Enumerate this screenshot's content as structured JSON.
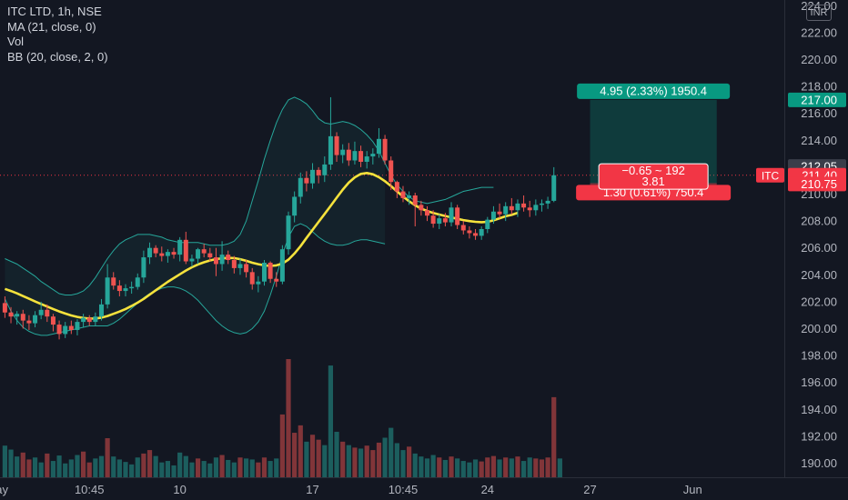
{
  "legend": {
    "symbol": "ITC LTD, 1h, NSE",
    "ma": "MA (21, close, 0)",
    "vol": "Vol",
    "bb": "BB (20, close, 2, 0)"
  },
  "currency": "INR",
  "colors": {
    "background": "#131722",
    "up": "#26a69a",
    "down": "#ef5350",
    "ma": "#f5e23c",
    "bb_band": "#26a69a",
    "axis_text": "#b2b5be"
  },
  "chart_data": {
    "type": "candlestick",
    "title": "ITC LTD, 1h, NSE",
    "ylim": [
      189.2,
      224.0
    ],
    "y_ticks": [
      190,
      192,
      194,
      196,
      198,
      200,
      202,
      204,
      206,
      208,
      210,
      212,
      214,
      216,
      218,
      220,
      222,
      224
    ],
    "y_tick_labels": [
      "190.00",
      "192.00",
      "194.00",
      "196.00",
      "198.00",
      "200.00",
      "202.00",
      "204.00",
      "206.00",
      "208.00",
      "210.00",
      "212.00",
      "214.00",
      "216.00",
      "218.00",
      "220.00",
      "222.00",
      "224.00"
    ],
    "x_tick_labels": [
      {
        "label": "ay",
        "bar": -0.5
      },
      {
        "label": "10:45",
        "bar": 14
      },
      {
        "label": "10",
        "bar": 29
      },
      {
        "label": "17",
        "bar": 51
      },
      {
        "label": "10:45",
        "bar": 66
      },
      {
        "label": "24",
        "bar": 80
      },
      {
        "label": "27",
        "bar": 97
      },
      {
        "label": "Jun",
        "bar": 114
      }
    ],
    "candles": [
      [
        201.9,
        202.4,
        200.8,
        201.2
      ],
      [
        201.2,
        201.6,
        200.4,
        200.9
      ],
      [
        200.9,
        201.3,
        200.3,
        201.1
      ],
      [
        201.1,
        201.4,
        200.0,
        200.6
      ],
      [
        200.6,
        201.0,
        199.9,
        200.4
      ],
      [
        200.4,
        201.3,
        200.1,
        201.0
      ],
      [
        201.0,
        202.0,
        200.7,
        201.4
      ],
      [
        201.4,
        201.8,
        200.5,
        200.9
      ],
      [
        200.9,
        201.1,
        199.8,
        200.3
      ],
      [
        200.3,
        200.6,
        199.2,
        199.6
      ],
      [
        199.6,
        200.5,
        199.3,
        200.2
      ],
      [
        200.2,
        200.6,
        199.6,
        199.9
      ],
      [
        199.9,
        200.7,
        199.5,
        200.5
      ],
      [
        200.5,
        201.1,
        200.1,
        200.8
      ],
      [
        200.8,
        201.0,
        200.2,
        200.5
      ],
      [
        200.5,
        201.2,
        200.2,
        200.9
      ],
      [
        200.9,
        202.2,
        200.6,
        201.8
      ],
      [
        201.8,
        204.8,
        201.5,
        203.8
      ],
      [
        203.8,
        204.2,
        202.9,
        203.2
      ],
      [
        203.2,
        203.6,
        202.4,
        202.8
      ],
      [
        202.8,
        203.3,
        202.4,
        203.0
      ],
      [
        203.0,
        203.5,
        202.6,
        203.1
      ],
      [
        203.1,
        204.1,
        202.9,
        203.8
      ],
      [
        203.8,
        205.8,
        203.4,
        205.3
      ],
      [
        205.3,
        206.4,
        204.8,
        206.0
      ],
      [
        206.0,
        206.2,
        205.3,
        205.6
      ],
      [
        205.6,
        206.1,
        205.0,
        205.4
      ],
      [
        205.4,
        205.9,
        204.9,
        205.7
      ],
      [
        205.7,
        206.0,
        205.2,
        205.5
      ],
      [
        205.5,
        206.8,
        205.0,
        206.6
      ],
      [
        206.6,
        207.2,
        204.8,
        205.0
      ],
      [
        205.0,
        205.5,
        204.6,
        205.2
      ],
      [
        205.2,
        206.0,
        204.8,
        205.9
      ],
      [
        205.9,
        206.3,
        205.3,
        205.6
      ],
      [
        205.6,
        206.0,
        205.0,
        205.3
      ],
      [
        205.3,
        206.0,
        203.9,
        204.8
      ],
      [
        204.8,
        206.5,
        204.3,
        205.5
      ],
      [
        205.5,
        205.8,
        204.8,
        205.1
      ],
      [
        205.1,
        205.4,
        204.1,
        204.5
      ],
      [
        204.5,
        205.2,
        204.0,
        204.8
      ],
      [
        204.8,
        205.1,
        203.8,
        204.2
      ],
      [
        204.2,
        204.5,
        202.9,
        203.3
      ],
      [
        203.3,
        203.9,
        202.7,
        203.5
      ],
      [
        203.5,
        205.1,
        203.2,
        204.9
      ],
      [
        204.9,
        205.0,
        203.4,
        203.7
      ],
      [
        203.7,
        204.2,
        203.1,
        203.5
      ],
      [
        203.5,
        206.2,
        203.3,
        205.9
      ],
      [
        205.9,
        208.7,
        205.5,
        208.4
      ],
      [
        208.4,
        210.2,
        207.9,
        209.8
      ],
      [
        209.8,
        211.6,
        209.3,
        211.2
      ],
      [
        211.2,
        211.7,
        210.2,
        210.8
      ],
      [
        210.8,
        212.3,
        210.4,
        211.8
      ],
      [
        211.8,
        212.0,
        210.8,
        211.4
      ],
      [
        211.4,
        212.8,
        210.9,
        212.2
      ],
      [
        212.2,
        217.2,
        211.8,
        214.3
      ],
      [
        214.3,
        214.6,
        212.4,
        212.9
      ],
      [
        212.9,
        213.7,
        212.3,
        213.3
      ],
      [
        213.3,
        213.8,
        212.1,
        212.5
      ],
      [
        212.5,
        213.9,
        212.2,
        213.2
      ],
      [
        213.2,
        213.6,
        212.0,
        212.4
      ],
      [
        212.4,
        213.2,
        211.9,
        212.8
      ],
      [
        212.8,
        213.4,
        212.2,
        213.0
      ],
      [
        213.0,
        214.9,
        212.7,
        214.1
      ],
      [
        214.1,
        214.4,
        212.2,
        212.5
      ],
      [
        212.5,
        212.8,
        210.3,
        210.9
      ],
      [
        210.9,
        211.0,
        209.7,
        210.2
      ],
      [
        210.2,
        210.6,
        209.4,
        209.7
      ],
      [
        209.7,
        210.2,
        209.2,
        209.9
      ],
      [
        209.9,
        210.1,
        207.6,
        209.2
      ],
      [
        209.2,
        209.5,
        208.4,
        208.8
      ],
      [
        208.8,
        209.1,
        208.0,
        208.4
      ],
      [
        208.4,
        208.8,
        207.5,
        207.8
      ],
      [
        207.8,
        208.5,
        207.4,
        208.2
      ],
      [
        208.2,
        208.6,
        207.6,
        207.9
      ],
      [
        207.9,
        209.4,
        207.6,
        209.0
      ],
      [
        209.0,
        209.2,
        207.4,
        207.7
      ],
      [
        207.7,
        208.0,
        207.0,
        207.3
      ],
      [
        207.3,
        207.6,
        206.7,
        207.1
      ],
      [
        207.1,
        207.4,
        206.6,
        206.9
      ],
      [
        206.9,
        207.6,
        206.6,
        207.4
      ],
      [
        207.4,
        208.3,
        207.1,
        208.1
      ],
      [
        208.1,
        209.1,
        207.8,
        208.7
      ],
      [
        208.7,
        209.3,
        208.2,
        208.5
      ],
      [
        208.5,
        209.4,
        208.0,
        209.1
      ],
      [
        209.1,
        209.7,
        208.5,
        208.8
      ],
      [
        208.8,
        209.6,
        208.3,
        209.3
      ],
      [
        209.3,
        209.9,
        208.7,
        209.0
      ],
      [
        209.0,
        209.5,
        208.3,
        208.8
      ],
      [
        208.8,
        209.6,
        208.4,
        209.2
      ],
      [
        209.2,
        209.6,
        208.7,
        209.3
      ],
      [
        209.3,
        209.8,
        208.9,
        209.5
      ],
      [
        209.5,
        212.0,
        209.4,
        211.4
      ]
    ],
    "volume": [
      [
        1,
        0.64
      ],
      [
        1,
        0.56
      ],
      [
        1,
        0.42
      ],
      [
        0,
        0.5
      ],
      [
        0,
        0.36
      ],
      [
        1,
        0.4
      ],
      [
        1,
        0.3
      ],
      [
        0,
        0.48
      ],
      [
        1,
        0.33
      ],
      [
        1,
        0.44
      ],
      [
        1,
        0.28
      ],
      [
        1,
        0.36
      ],
      [
        1,
        0.45
      ],
      [
        0,
        0.52
      ],
      [
        0,
        0.3
      ],
      [
        1,
        0.38
      ],
      [
        1,
        0.43
      ],
      [
        0,
        0.79
      ],
      [
        1,
        0.42
      ],
      [
        1,
        0.36
      ],
      [
        1,
        0.31
      ],
      [
        1,
        0.26
      ],
      [
        1,
        0.4
      ],
      [
        0,
        0.48
      ],
      [
        0,
        0.55
      ],
      [
        1,
        0.43
      ],
      [
        1,
        0.3
      ],
      [
        1,
        0.33
      ],
      [
        1,
        0.24
      ],
      [
        1,
        0.5
      ],
      [
        1,
        0.43
      ],
      [
        1,
        0.3
      ],
      [
        0,
        0.38
      ],
      [
        1,
        0.33
      ],
      [
        1,
        0.28
      ],
      [
        1,
        0.4
      ],
      [
        0,
        0.45
      ],
      [
        1,
        0.35
      ],
      [
        1,
        0.3
      ],
      [
        0,
        0.4
      ],
      [
        1,
        0.38
      ],
      [
        1,
        0.36
      ],
      [
        0,
        0.3
      ],
      [
        0,
        0.4
      ],
      [
        1,
        0.33
      ],
      [
        1,
        0.38
      ],
      [
        0,
        1.27
      ],
      [
        0,
        2.39
      ],
      [
        0,
        0.9
      ],
      [
        0,
        1.05
      ],
      [
        1,
        0.72
      ],
      [
        0,
        0.86
      ],
      [
        0,
        0.76
      ],
      [
        1,
        0.65
      ],
      [
        1,
        2.26
      ],
      [
        1,
        0.92
      ],
      [
        0,
        0.72
      ],
      [
        1,
        0.65
      ],
      [
        0,
        0.6
      ],
      [
        1,
        0.58
      ],
      [
        0,
        0.64
      ],
      [
        0,
        0.55
      ],
      [
        0,
        0.7
      ],
      [
        1,
        0.8
      ],
      [
        1,
        1.0
      ],
      [
        1,
        0.69
      ],
      [
        1,
        0.55
      ],
      [
        0,
        0.62
      ],
      [
        1,
        0.48
      ],
      [
        1,
        0.42
      ],
      [
        1,
        0.38
      ],
      [
        1,
        0.45
      ],
      [
        0,
        0.4
      ],
      [
        1,
        0.35
      ],
      [
        0,
        0.42
      ],
      [
        1,
        0.38
      ],
      [
        1,
        0.33
      ],
      [
        1,
        0.3
      ],
      [
        1,
        0.36
      ],
      [
        0,
        0.32
      ],
      [
        0,
        0.4
      ],
      [
        0,
        0.43
      ],
      [
        1,
        0.36
      ],
      [
        0,
        0.4
      ],
      [
        1,
        0.38
      ],
      [
        0,
        0.42
      ],
      [
        1,
        0.33
      ],
      [
        1,
        0.4
      ],
      [
        0,
        0.38
      ],
      [
        0,
        0.36
      ],
      [
        0,
        0.4
      ],
      [
        0,
        1.62
      ],
      [
        1,
        0.38
      ]
    ],
    "ma_21": [
      202.95,
      202.8,
      202.62,
      202.42,
      202.22,
      202.02,
      201.83,
      201.64,
      201.46,
      201.28,
      201.12,
      200.98,
      200.87,
      200.79,
      200.75,
      200.76,
      200.82,
      200.94,
      201.1,
      201.27,
      201.46,
      201.68,
      201.93,
      202.21,
      202.53,
      202.85,
      203.16,
      203.48,
      203.76,
      204.04,
      204.32,
      204.56,
      204.77,
      204.93,
      205.07,
      205.17,
      205.22,
      205.26,
      205.24,
      205.16,
      205.04,
      204.9,
      204.79,
      204.7,
      204.66,
      204.7,
      204.84,
      205.13,
      205.58,
      206.13,
      206.74,
      207.34,
      207.94,
      208.53,
      209.12,
      209.73,
      210.33,
      210.85,
      211.24,
      211.5,
      211.57,
      211.47,
      211.26,
      210.96,
      210.6,
      210.2,
      209.82,
      209.47,
      209.17,
      208.92,
      208.74,
      208.6,
      208.48,
      208.37,
      208.27,
      208.16,
      208.07,
      207.99,
      207.94,
      207.91,
      207.94,
      208.05,
      208.2,
      208.35,
      208.45,
      208.61
    ],
    "ma_21_start_bar": 0,
    "bb_upper": [
      205.2,
      205.0,
      204.8,
      204.5,
      204.2,
      203.9,
      203.5,
      203.2,
      202.9,
      202.6,
      202.5,
      202.5,
      202.6,
      202.8,
      203.2,
      203.8,
      204.5,
      205.2,
      205.8,
      206.3,
      206.6,
      206.8,
      207.0,
      207.0,
      207.0,
      206.9,
      206.8,
      206.6,
      206.5,
      206.4,
      206.4,
      206.4,
      206.4,
      206.3,
      206.2,
      206.2,
      206.2,
      206.3,
      206.5,
      207.0,
      208.0,
      209.5,
      211.0,
      212.6,
      214.0,
      215.3,
      216.3,
      217.0,
      217.2,
      217.0,
      216.7,
      216.2,
      215.6,
      215.3,
      215.2,
      215.3,
      215.4,
      215.3,
      215.1,
      214.8,
      214.4,
      213.9,
      213.2,
      212.3,
      211.4,
      210.7,
      210.2,
      209.8,
      209.5,
      209.4,
      209.3,
      209.4,
      209.5,
      209.6,
      209.8,
      210.0,
      210.2,
      210.3,
      210.4,
      210.5,
      210.5,
      210.5
    ],
    "bb_lower": [
      202.2,
      201.3,
      200.6,
      200.1,
      199.8,
      199.6,
      199.5,
      199.5,
      199.6,
      199.7,
      199.8,
      199.9,
      200.0,
      200.1,
      200.2,
      200.2,
      200.2,
      200.2,
      200.4,
      200.7,
      201.1,
      201.5,
      201.9,
      202.3,
      202.6,
      202.8,
      203.0,
      203.1,
      203.1,
      203.0,
      202.8,
      202.5,
      202.1,
      201.6,
      201.1,
      200.6,
      200.2,
      199.9,
      199.7,
      199.6,
      199.7,
      200.0,
      200.5,
      201.3,
      202.5,
      203.9,
      205.5,
      206.8,
      207.6,
      207.8,
      207.6,
      207.2,
      206.8,
      206.5,
      206.3,
      206.2,
      206.2,
      206.3,
      206.5,
      206.6,
      206.6,
      206.5,
      206.4,
      206.3
    ],
    "bb_lower_start_bar": 0,
    "position": {
      "entry": 210.75,
      "target": 217.0,
      "stop": 210.75,
      "start_bar": 97,
      "end_bar": 118,
      "target_label": "4.95 (2.33%) 1950.4",
      "stop_label": "1.30 (0.61%) 750.4",
      "center_label_line1": "−0.65 ~ 192",
      "center_label_line2": "3.81"
    },
    "last_price": 211.4,
    "last_price_label": "211.40",
    "last_price_tag": "ITC",
    "price_tags": [
      {
        "price": 217.0,
        "label": "217.00",
        "color": "#089981"
      },
      {
        "price": 212.05,
        "label": "212.05",
        "color": "#3a3e4a"
      },
      {
        "price": 211.4,
        "label": "211.40",
        "color": "#f23645"
      },
      {
        "price": 210.75,
        "label": "210.75",
        "color": "#f23645"
      }
    ]
  }
}
